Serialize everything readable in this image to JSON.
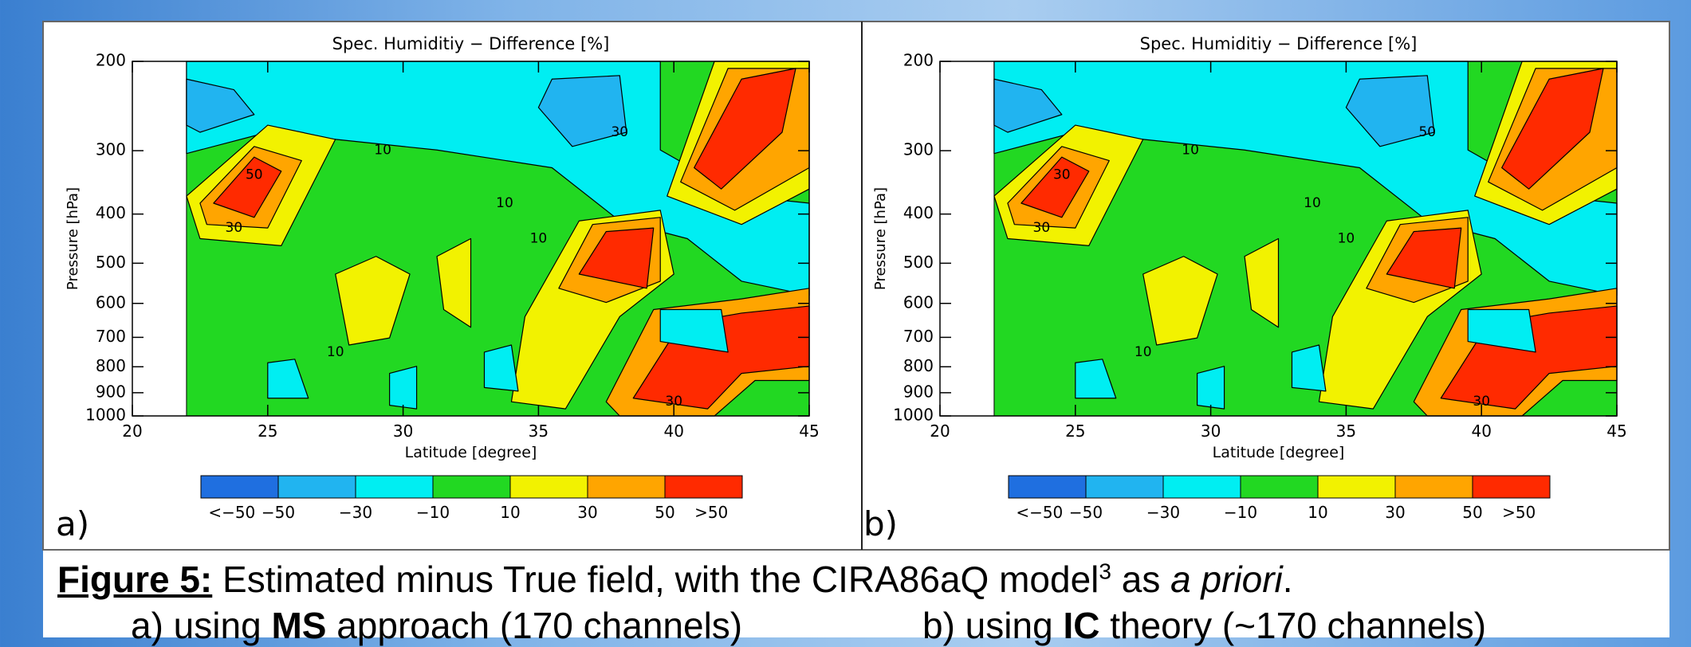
{
  "chart_data": [
    {
      "type": "contour",
      "title": "Spec. Humiditiy − Difference [%]",
      "xlabel": "Latitude [degree]",
      "ylabel": "Pressure [hPa]",
      "xlim": [
        20,
        45
      ],
      "xticks": [
        20,
        25,
        30,
        35,
        40,
        45
      ],
      "ylim": [
        1000,
        200
      ],
      "yticks": [
        200,
        300,
        400,
        500,
        600,
        700,
        800,
        900,
        1000
      ],
      "yscale": "log",
      "panel_label": "a)",
      "contour_labels": [
        "50",
        "30",
        "10",
        "10",
        "10",
        "30",
        "10",
        "30"
      ],
      "colorbar": {
        "colors": [
          "#1f6fe0",
          "#21b4f0",
          "#00eef2",
          "#22d822",
          "#f2f200",
          "#ffa500",
          "#ff2a00"
        ],
        "labels": [
          "<−50",
          "−50",
          "−30",
          "−10",
          "10",
          "30",
          "50",
          ">50"
        ]
      }
    },
    {
      "type": "contour",
      "title": "Spec. Humiditiy − Difference [%]",
      "xlabel": "Latitude [degree]",
      "ylabel": "Pressure [hPa]",
      "xlim": [
        20,
        45
      ],
      "xticks": [
        20,
        25,
        30,
        35,
        40,
        45
      ],
      "ylim": [
        1000,
        200
      ],
      "yticks": [
        200,
        300,
        400,
        500,
        600,
        700,
        800,
        900,
        1000
      ],
      "yscale": "log",
      "panel_label": "b)",
      "contour_labels": [
        "30",
        "30",
        "10",
        "10",
        "10",
        "50",
        "10",
        "30"
      ],
      "colorbar": {
        "colors": [
          "#1f6fe0",
          "#21b4f0",
          "#00eef2",
          "#22d822",
          "#f2f200",
          "#ffa500",
          "#ff2a00"
        ],
        "labels": [
          "<−50",
          "−50",
          "−30",
          "−10",
          "10",
          "30",
          "50",
          ">50"
        ]
      }
    }
  ],
  "caption": {
    "figure_label": "Figure 5:",
    "text": "Estimated minus True field, with the CIRA86aQ model",
    "superscript": "3",
    "text_after": "as",
    "italic": "a priori",
    "end": ".",
    "line_a": {
      "prefix": "a) using",
      "bold": "MS",
      "suffix": "approach (170 channels)"
    },
    "line_b": {
      "prefix": "b) using",
      "bold": "IC",
      "suffix": "theory (~170 channels)"
    }
  }
}
